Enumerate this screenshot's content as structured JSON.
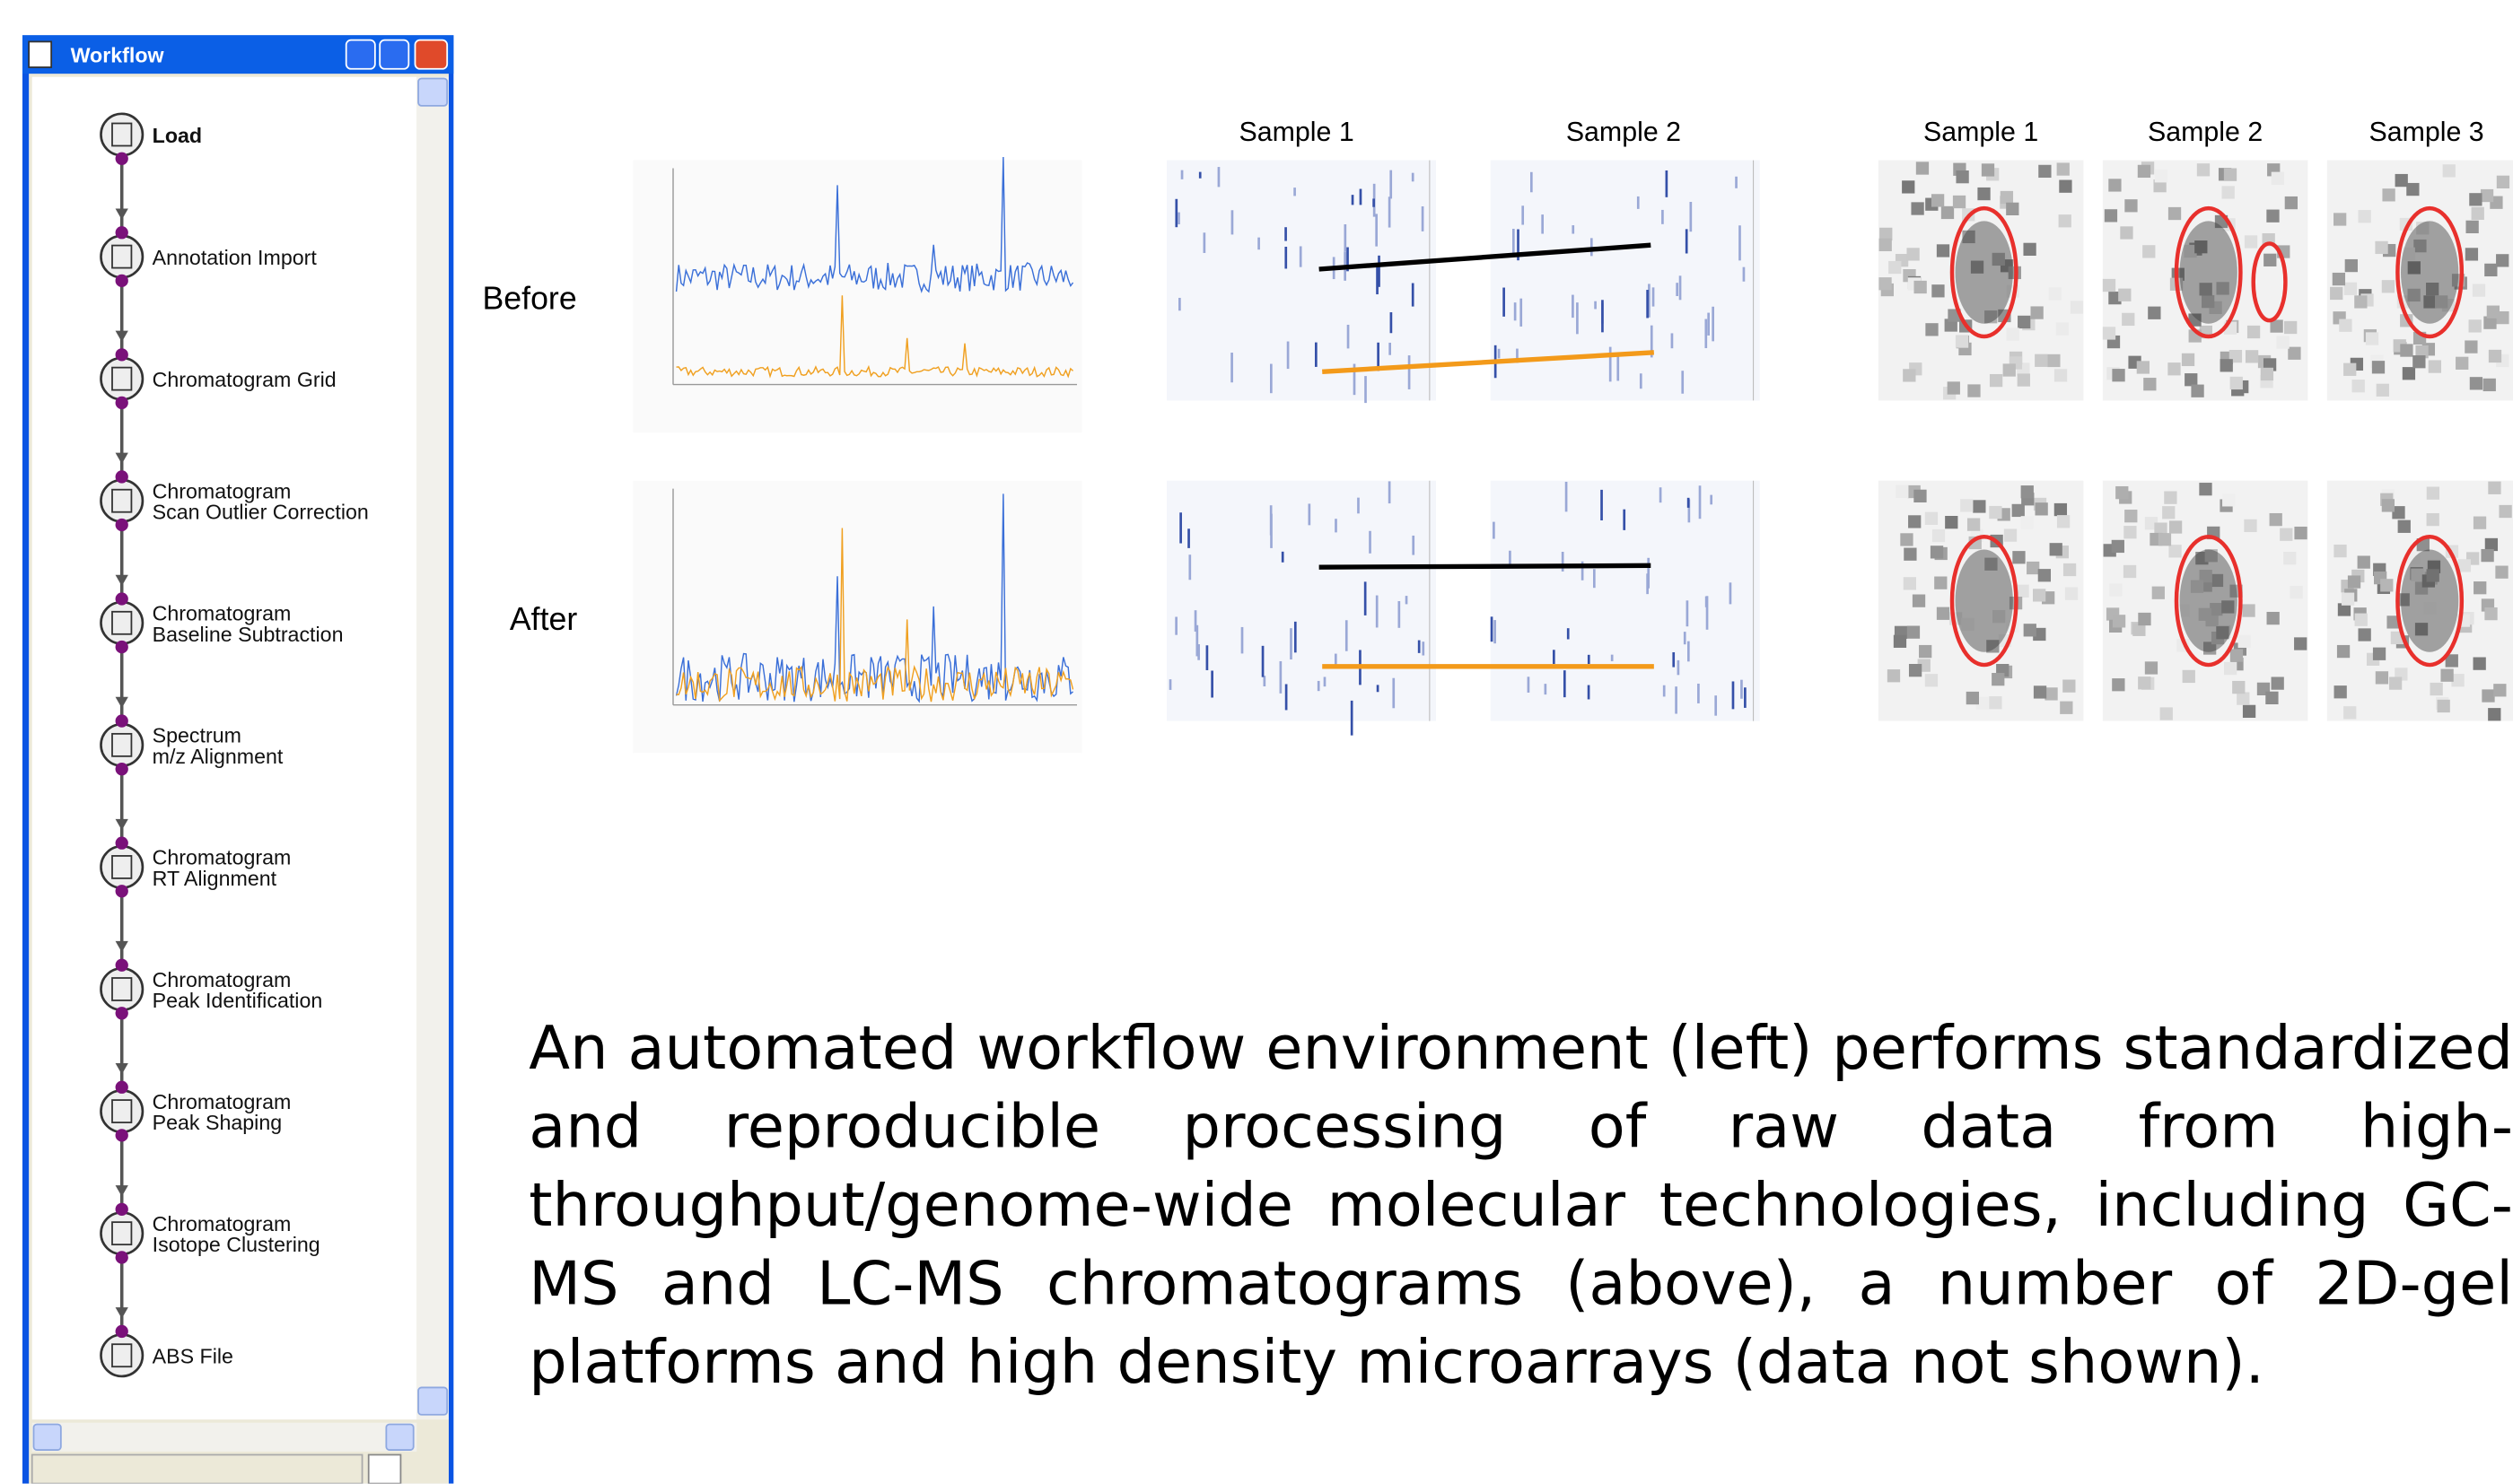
{
  "window": {
    "title": "Workflow",
    "nodes": [
      {
        "lines": [
          "Load"
        ]
      },
      {
        "lines": [
          "Annotation Import"
        ]
      },
      {
        "lines": [
          "Chromatogram Grid"
        ]
      },
      {
        "lines": [
          "Chromatogram",
          "Scan Outlier Correction"
        ]
      },
      {
        "lines": [
          "Chromatogram",
          "Baseline Subtraction"
        ]
      },
      {
        "lines": [
          "Spectrum",
          "m/z Alignment"
        ]
      },
      {
        "lines": [
          "Chromatogram",
          "RT Alignment"
        ]
      },
      {
        "lines": [
          "Chromatogram",
          "Peak Identification"
        ]
      },
      {
        "lines": [
          "Chromatogram",
          "Peak Shaping"
        ]
      },
      {
        "lines": [
          "Chromatogram",
          "Isotope Clustering"
        ]
      },
      {
        "lines": [
          "ABS File"
        ]
      }
    ]
  },
  "figure": {
    "rows": [
      "Before",
      "After"
    ],
    "gel_samples": [
      "Sample 1",
      "Sample 2"
    ],
    "spot_samples": [
      "Sample 1",
      "Sample 2",
      "Sample 3"
    ]
  },
  "caption": "An automated workflow environment (left) performs standardized and reproducible processing of raw data from high-throughput/genome-wide molecular technologies, including GC-MS and LC-MS chromatograms (above), a number of 2D-gel platforms and high density microarrays (data not shown)."
}
